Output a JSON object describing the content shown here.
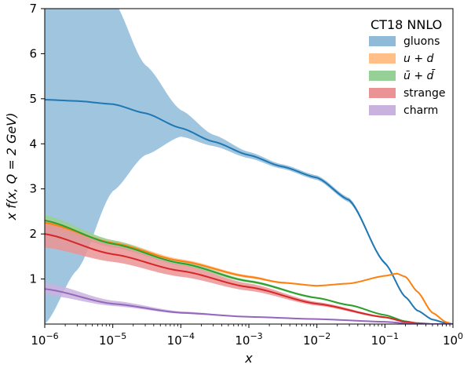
{
  "chart_data": {
    "type": "area",
    "title": "",
    "xlabel": "x",
    "ylabel": "x f(x, Q = 2 GeV)",
    "xscale": "log",
    "xlim": [
      1e-06,
      1
    ],
    "ylim": [
      0,
      7
    ],
    "grid": false,
    "legend": {
      "title": "CT18 NNLO",
      "placement": "top-right"
    },
    "x_ticks": [
      {
        "value": 1e-06,
        "label": "10^-6"
      },
      {
        "value": 1e-05,
        "label": "10^-5"
      },
      {
        "value": 0.0001,
        "label": "10^-4"
      },
      {
        "value": 0.001,
        "label": "10^-3"
      },
      {
        "value": 0.01,
        "label": "10^-2"
      },
      {
        "value": 0.1,
        "label": "10^-1"
      },
      {
        "value": 1,
        "label": "10^0"
      }
    ],
    "y_ticks": [
      1,
      2,
      3,
      4,
      5,
      6,
      7
    ],
    "series": [
      {
        "name": "gluons",
        "legend_label": "gluons",
        "color": "#1f77b4",
        "fill": "#8fbbd9",
        "x": [
          1e-06,
          3e-06,
          1e-05,
          3e-05,
          0.0001,
          0.0003,
          0.001,
          0.003,
          0.01,
          0.03,
          0.1,
          0.2,
          0.3,
          0.5,
          0.8,
          1
        ],
        "central": [
          4.98,
          4.95,
          4.88,
          4.68,
          4.35,
          4.05,
          3.75,
          3.5,
          3.25,
          2.75,
          1.35,
          0.6,
          0.3,
          0.1,
          0.02,
          0.0
        ],
        "lower": [
          0.0,
          1.2,
          2.95,
          3.75,
          4.16,
          3.95,
          3.68,
          3.45,
          3.2,
          2.7,
          1.32,
          0.58,
          0.29,
          0.09,
          0.02,
          0.0
        ],
        "upper": [
          12.0,
          9.3,
          7.2,
          5.75,
          4.75,
          4.2,
          3.82,
          3.55,
          3.3,
          2.8,
          1.38,
          0.62,
          0.31,
          0.11,
          0.02,
          0.0
        ]
      },
      {
        "name": "u + d",
        "legend_label": "u + d",
        "color": "#ff7f0e",
        "fill": "#ffbf86",
        "x": [
          1e-06,
          1e-05,
          0.0001,
          0.001,
          0.003,
          0.01,
          0.03,
          0.1,
          0.15,
          0.2,
          0.3,
          0.5,
          0.8,
          1
        ],
        "central": [
          2.25,
          1.8,
          1.4,
          1.05,
          0.92,
          0.85,
          0.9,
          1.07,
          1.12,
          1.05,
          0.72,
          0.25,
          0.04,
          0.0
        ],
        "lower": [
          2.15,
          1.74,
          1.36,
          1.02,
          0.9,
          0.84,
          0.89,
          1.06,
          1.11,
          1.04,
          0.71,
          0.24,
          0.04,
          0.0
        ],
        "upper": [
          2.35,
          1.86,
          1.44,
          1.08,
          0.94,
          0.86,
          0.91,
          1.08,
          1.13,
          1.06,
          0.73,
          0.26,
          0.04,
          0.0
        ]
      },
      {
        "name": "ubar + dbar",
        "legend_label": "ū + d̄",
        "color": "#2ca02c",
        "fill": "#96d096",
        "x": [
          1e-06,
          1e-05,
          0.0001,
          0.001,
          0.01,
          0.03,
          0.1,
          0.2,
          0.3,
          0.5,
          1
        ],
        "central": [
          2.3,
          1.78,
          1.35,
          0.95,
          0.58,
          0.42,
          0.2,
          0.06,
          0.02,
          0.0,
          0.0
        ],
        "lower": [
          2.15,
          1.7,
          1.3,
          0.92,
          0.56,
          0.4,
          0.19,
          0.05,
          0.02,
          0.0,
          0.0
        ],
        "upper": [
          2.42,
          1.86,
          1.4,
          0.98,
          0.6,
          0.44,
          0.21,
          0.07,
          0.02,
          0.0,
          0.0
        ]
      },
      {
        "name": "strange",
        "legend_label": "strange",
        "color": "#d62728",
        "fill": "#eb9394",
        "x": [
          1e-06,
          1e-05,
          0.0001,
          0.001,
          0.01,
          0.1,
          0.2,
          0.3,
          0.5,
          1
        ],
        "central": [
          2.0,
          1.55,
          1.18,
          0.82,
          0.45,
          0.15,
          0.05,
          0.02,
          0.0,
          0.0
        ],
        "lower": [
          1.7,
          1.38,
          1.05,
          0.74,
          0.41,
          0.13,
          0.04,
          0.01,
          0.0,
          0.0
        ],
        "upper": [
          2.28,
          1.75,
          1.32,
          0.9,
          0.49,
          0.17,
          0.06,
          0.03,
          0.0,
          0.0
        ]
      },
      {
        "name": "charm",
        "legend_label": "charm",
        "color": "#9467bd",
        "fill": "#c9b3de",
        "x": [
          1e-06,
          1e-05,
          0.0001,
          0.001,
          0.01,
          0.1,
          0.2,
          0.3,
          1
        ],
        "central": [
          0.78,
          0.45,
          0.25,
          0.16,
          0.11,
          0.05,
          0.02,
          0.0,
          0.0
        ],
        "lower": [
          0.65,
          0.4,
          0.23,
          0.15,
          0.1,
          0.04,
          0.02,
          0.0,
          0.0
        ],
        "upper": [
          0.92,
          0.52,
          0.28,
          0.17,
          0.12,
          0.06,
          0.02,
          0.0,
          0.0
        ]
      }
    ]
  }
}
